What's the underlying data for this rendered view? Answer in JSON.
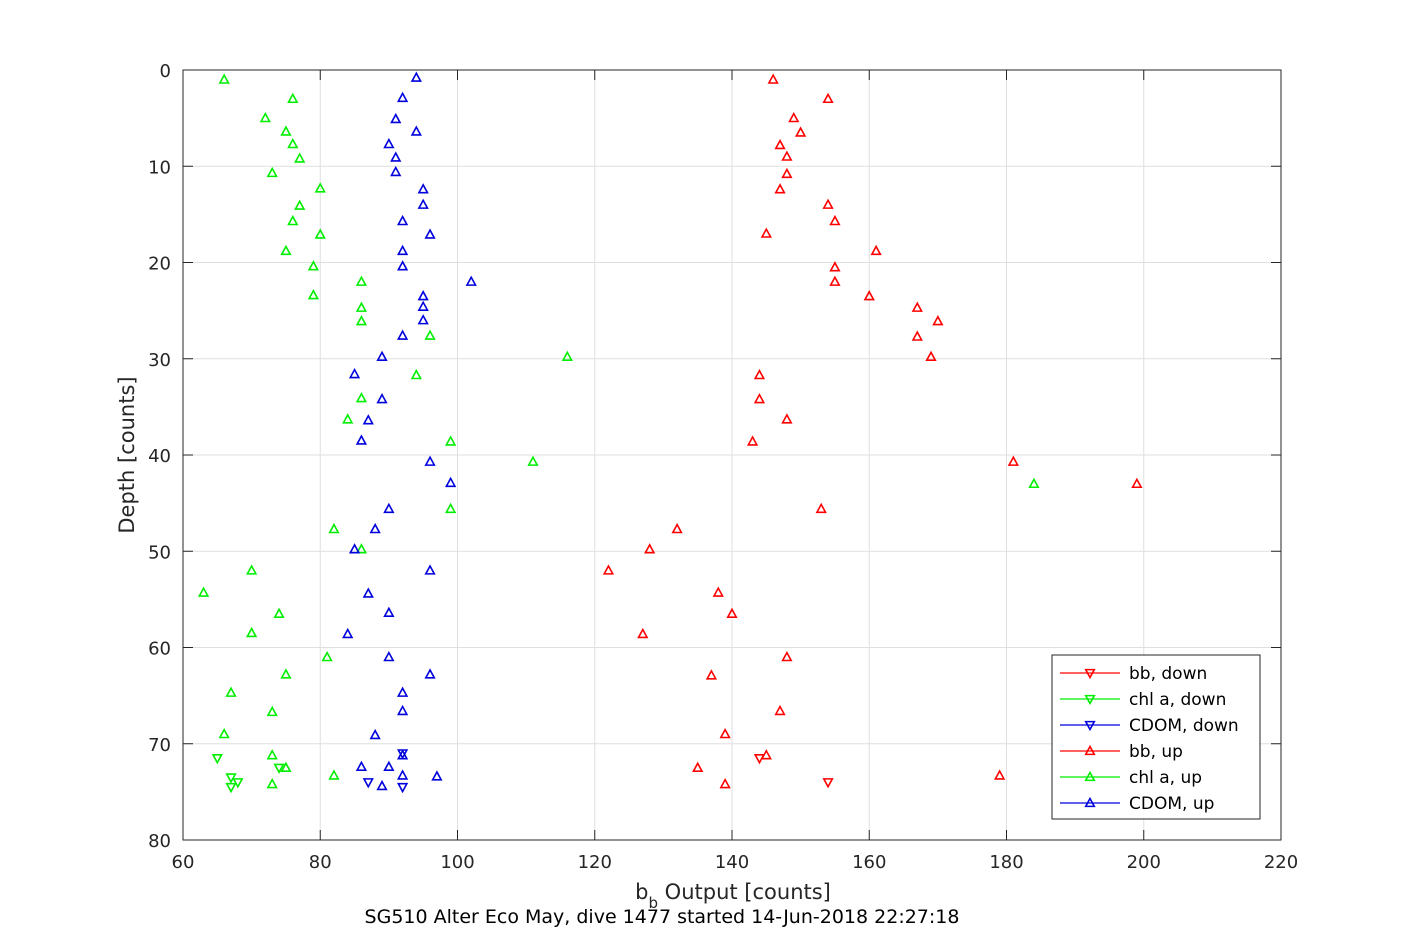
{
  "chart_data": {
    "type": "scatter",
    "xlabel_main": "b",
    "xlabel_sub": "b",
    "xlabel_rest": " Output [counts]",
    "ylabel": "Depth [counts]",
    "footer": "SG510 Alter Eco May, dive 1477 started 14-Jun-2018 22:27:18",
    "xlim": [
      60,
      220
    ],
    "ylim": [
      0,
      80
    ],
    "y_reversed": true,
    "xticks": [
      60,
      80,
      100,
      120,
      140,
      160,
      180,
      200,
      220
    ],
    "yticks": [
      0,
      10,
      20,
      30,
      40,
      50,
      60,
      70,
      80
    ],
    "grid": true,
    "legend_position": "bottom-right",
    "series": [
      {
        "name": "bb, down",
        "color": "#ff0000",
        "marker": "triangle-down",
        "points": [
          [
            144,
            71.5
          ],
          [
            154,
            74
          ]
        ]
      },
      {
        "name": "chl a, down",
        "color": "#00ee00",
        "marker": "triangle-down",
        "points": [
          [
            65,
            71.5
          ],
          [
            67,
            73.5
          ],
          [
            68,
            74
          ],
          [
            67,
            74.5
          ],
          [
            74,
            72.5
          ]
        ]
      },
      {
        "name": "CDOM, down",
        "color": "#0000dd",
        "marker": "triangle-down",
        "points": [
          [
            92,
            71
          ],
          [
            87,
            74
          ],
          [
            92,
            74.5
          ]
        ]
      },
      {
        "name": "bb, up",
        "color": "#ff0000",
        "marker": "triangle-up",
        "points": [
          [
            146,
            1
          ],
          [
            154,
            3
          ],
          [
            149,
            5
          ],
          [
            150,
            6.5
          ],
          [
            147,
            7.8
          ],
          [
            148,
            9
          ],
          [
            148,
            10.8
          ],
          [
            147,
            12.4
          ],
          [
            154,
            14
          ],
          [
            155,
            15.7
          ],
          [
            145,
            17
          ],
          [
            161,
            18.8
          ],
          [
            155,
            20.5
          ],
          [
            155,
            22
          ],
          [
            160,
            23.5
          ],
          [
            167,
            24.7
          ],
          [
            170,
            26.1
          ],
          [
            167,
            27.7
          ],
          [
            169,
            29.8
          ],
          [
            144,
            31.7
          ],
          [
            144,
            34.2
          ],
          [
            148,
            36.3
          ],
          [
            143,
            38.6
          ],
          [
            181,
            40.7
          ],
          [
            199,
            43
          ],
          [
            153,
            45.6
          ],
          [
            132,
            47.7
          ],
          [
            128,
            49.8
          ],
          [
            122,
            52
          ],
          [
            138,
            54.3
          ],
          [
            140,
            56.5
          ],
          [
            127,
            58.6
          ],
          [
            148,
            61
          ],
          [
            137,
            62.9
          ],
          [
            147,
            66.6
          ],
          [
            139,
            69
          ],
          [
            145,
            71.2
          ],
          [
            135,
            72.5
          ],
          [
            139,
            74.2
          ],
          [
            179,
            73.3
          ]
        ]
      },
      {
        "name": "chl a, up",
        "color": "#00ee00",
        "marker": "triangle-up",
        "points": [
          [
            66,
            1
          ],
          [
            76,
            3
          ],
          [
            72,
            5
          ],
          [
            75,
            6.4
          ],
          [
            76,
            7.7
          ],
          [
            77,
            9.2
          ],
          [
            73,
            10.7
          ],
          [
            80,
            12.3
          ],
          [
            77,
            14.1
          ],
          [
            76,
            15.7
          ],
          [
            80,
            17.1
          ],
          [
            75,
            18.8
          ],
          [
            79,
            20.4
          ],
          [
            86,
            22
          ],
          [
            79,
            23.4
          ],
          [
            86,
            24.7
          ],
          [
            86,
            26.1
          ],
          [
            96,
            27.6
          ],
          [
            116,
            29.8
          ],
          [
            94,
            31.7
          ],
          [
            86,
            34.1
          ],
          [
            84,
            36.3
          ],
          [
            99,
            38.6
          ],
          [
            111,
            40.7
          ],
          [
            184,
            43
          ],
          [
            99,
            45.6
          ],
          [
            82,
            47.7
          ],
          [
            86,
            49.8
          ],
          [
            70,
            52
          ],
          [
            63,
            54.3
          ],
          [
            74,
            56.5
          ],
          [
            70,
            58.5
          ],
          [
            81,
            61
          ],
          [
            75,
            62.8
          ],
          [
            67,
            64.7
          ],
          [
            73,
            66.7
          ],
          [
            66,
            69
          ],
          [
            73,
            71.2
          ],
          [
            75,
            72.5
          ],
          [
            82,
            73.3
          ],
          [
            73,
            74.2
          ]
        ]
      },
      {
        "name": "CDOM, up",
        "color": "#0000dd",
        "marker": "triangle-up",
        "points": [
          [
            94,
            0.8
          ],
          [
            92,
            2.9
          ],
          [
            91,
            5.1
          ],
          [
            94,
            6.4
          ],
          [
            90,
            7.7
          ],
          [
            91,
            9.1
          ],
          [
            91,
            10.6
          ],
          [
            95,
            12.4
          ],
          [
            95,
            14
          ],
          [
            92,
            15.7
          ],
          [
            96,
            17.1
          ],
          [
            92,
            18.8
          ],
          [
            92,
            20.4
          ],
          [
            102,
            22
          ],
          [
            95,
            23.5
          ],
          [
            95,
            24.6
          ],
          [
            95,
            26
          ],
          [
            92,
            27.6
          ],
          [
            89,
            29.8
          ],
          [
            85,
            31.6
          ],
          [
            89,
            34.2
          ],
          [
            87,
            36.4
          ],
          [
            86,
            38.5
          ],
          [
            96,
            40.7
          ],
          [
            99,
            42.9
          ],
          [
            90,
            45.6
          ],
          [
            88,
            47.7
          ],
          [
            85,
            49.8
          ],
          [
            96,
            52
          ],
          [
            87,
            54.4
          ],
          [
            90,
            56.4
          ],
          [
            84,
            58.6
          ],
          [
            90,
            61
          ],
          [
            96,
            62.8
          ],
          [
            92,
            64.7
          ],
          [
            92,
            66.6
          ],
          [
            88,
            69.1
          ],
          [
            92,
            71.2
          ],
          [
            86,
            72.4
          ],
          [
            90,
            72.4
          ],
          [
            97,
            73.4
          ],
          [
            92,
            73.3
          ],
          [
            89,
            74.4
          ]
        ]
      }
    ]
  }
}
